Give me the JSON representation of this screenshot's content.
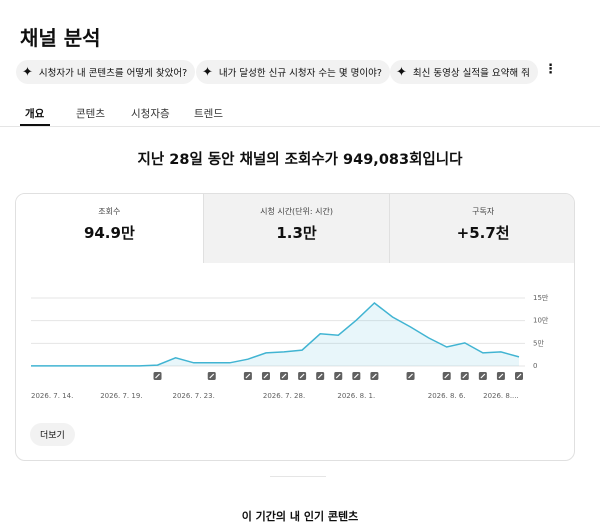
{
  "header": {
    "title": "채널 분석"
  },
  "chips": [
    "시청자가 내 콘텐츠를 어떻게 찾았어?",
    "내가 달성한 신규 시청자 수는 몇 명이야?",
    "최신 동영상 실적을 요약해 줘"
  ],
  "tabs": [
    "개요",
    "콘텐츠",
    "시청자층",
    "트렌드"
  ],
  "headline": "지난 28일 동안 채널의 조회수가 949,083회입니다",
  "metrics": [
    {
      "label": "조회수",
      "value": "94.9만"
    },
    {
      "label": "시청 시간(단위: 시간)",
      "value": "1.3만"
    },
    {
      "label": "구독자",
      "value": "+5.7천"
    }
  ],
  "more_button": "더보기",
  "section_title": "이 기간의 내 인기 콘텐츠",
  "chart_data": {
    "type": "area",
    "color": "#41b4d2",
    "categories": [
      "2026. 7. 14.",
      null,
      null,
      null,
      null,
      "2026. 7. 19.",
      null,
      null,
      null,
      "2026. 7. 23.",
      null,
      null,
      null,
      null,
      "2026. 7. 28.",
      null,
      null,
      null,
      "2026. 8. 1.",
      null,
      null,
      null,
      null,
      "2026. 8. 6.",
      null,
      null,
      "2026. 8....",
      null
    ],
    "values": [
      300,
      300,
      300,
      300,
      300,
      300,
      300,
      2000,
      18000,
      7000,
      7000,
      7000,
      15000,
      29000,
      31000,
      35000,
      71000,
      68000,
      101000,
      139000,
      108000,
      86000,
      62000,
      42000,
      51000,
      29000,
      31000,
      20000
    ],
    "ylim": [
      0,
      150000
    ],
    "yticks": [
      0,
      {
        "value": 50000,
        "label": "5만"
      },
      {
        "value": 100000,
        "label": "10만"
      },
      {
        "value": 150000,
        "label": "15만"
      }
    ],
    "grid": true
  }
}
